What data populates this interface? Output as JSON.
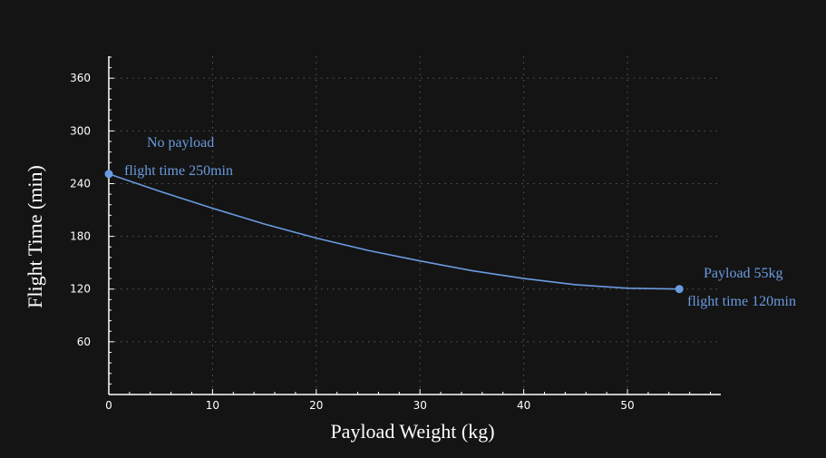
{
  "chart_data": {
    "type": "line",
    "xlabel": "Payload Weight (kg)",
    "ylabel": "Flight Time (min)",
    "xlim": [
      0,
      59
    ],
    "ylim": [
      0,
      385
    ],
    "xticks": [
      0,
      10,
      20,
      30,
      40,
      50
    ],
    "yticks": [
      60,
      120,
      180,
      240,
      300,
      360
    ],
    "grid": true,
    "series": [
      {
        "x": [
          0,
          5,
          10,
          15,
          20,
          25,
          30,
          35,
          40,
          45,
          50,
          55
        ],
        "y": [
          251,
          231,
          212,
          194,
          178,
          164,
          152,
          141,
          132,
          125,
          121,
          120
        ]
      }
    ],
    "markers": [
      {
        "x": 0,
        "y": 251
      },
      {
        "x": 55,
        "y": 120
      }
    ],
    "annotations": [
      {
        "line1": "No payload",
        "line2": "flight time 250min"
      },
      {
        "line1": "Payload 55kg",
        "line2": "flight time 120min"
      }
    ],
    "colors": {
      "background": "#141414",
      "line": "#6a9be0",
      "annotation": "#6a9be0",
      "axis": "#ffffff",
      "grid": "#5a5a5a"
    }
  }
}
